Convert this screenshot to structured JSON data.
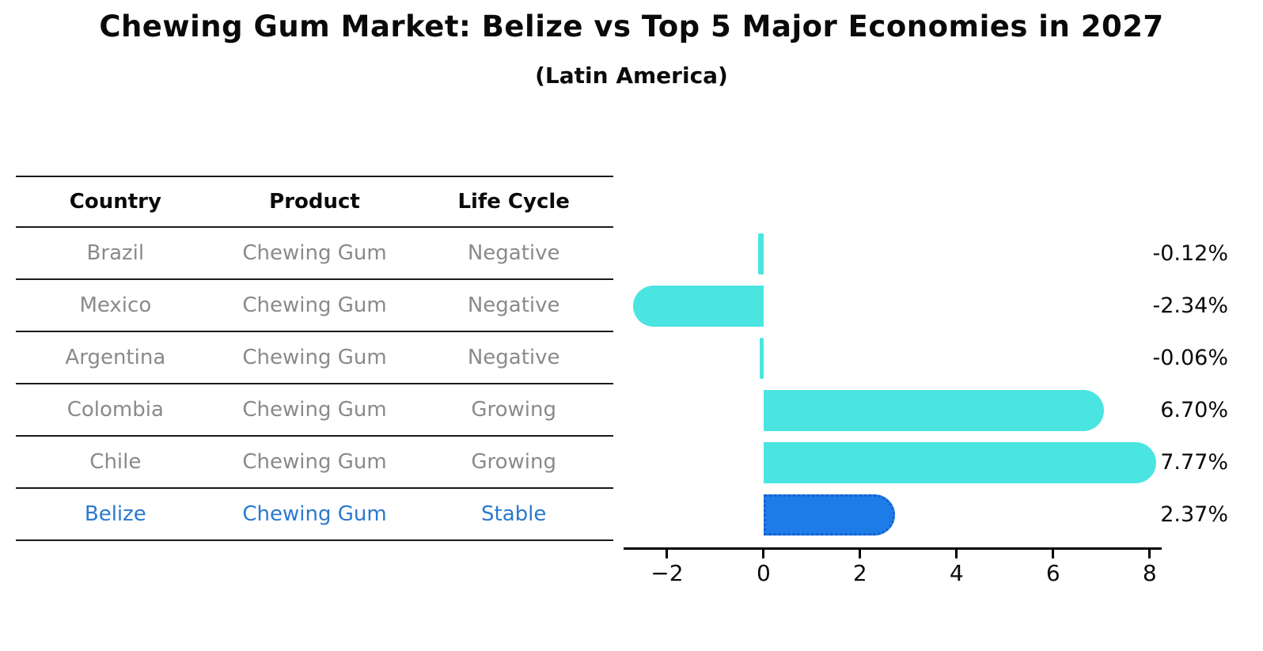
{
  "title": "Chewing Gum Market: Belize vs Top 5 Major Economies in 2027",
  "subtitle": "(Latin America)",
  "table": {
    "headers": [
      "Country",
      "Product",
      "Life Cycle"
    ],
    "rows": [
      {
        "country": "Brazil",
        "product": "Chewing Gum",
        "life_cycle": "Negative",
        "highlight": false
      },
      {
        "country": "Mexico",
        "product": "Chewing Gum",
        "life_cycle": "Negative",
        "highlight": false
      },
      {
        "country": "Argentina",
        "product": "Chewing Gum",
        "life_cycle": "Negative",
        "highlight": false
      },
      {
        "country": "Colombia",
        "product": "Chewing Gum",
        "life_cycle": "Growing",
        "highlight": false
      },
      {
        "country": "Chile",
        "product": "Chewing Gum",
        "life_cycle": "Growing",
        "highlight": false
      },
      {
        "country": "Belize",
        "product": "Chewing Gum",
        "life_cycle": "Stable",
        "highlight": true
      }
    ]
  },
  "chart_data": {
    "type": "bar",
    "orientation": "horizontal",
    "title": "Chewing Gum Market: Belize vs Top 5 Major Economies in 2027",
    "subtitle": "(Latin America)",
    "categories": [
      "Brazil",
      "Mexico",
      "Argentina",
      "Colombia",
      "Chile",
      "Belize"
    ],
    "values": [
      -0.12,
      -2.34,
      -0.06,
      6.7,
      7.77,
      2.37
    ],
    "value_labels": [
      "-0.12%",
      "-2.34%",
      "-0.06%",
      "6.70%",
      "7.77%",
      "2.37%"
    ],
    "units": "percent",
    "x_ticks": [
      -2,
      0,
      2,
      4,
      6,
      8
    ],
    "x_tick_labels": [
      "−2",
      "0",
      "2",
      "4",
      "6",
      "8"
    ],
    "xlim": [
      -2.9,
      8.25
    ],
    "grid": false,
    "legend": null,
    "highlight_index": 5,
    "bar_color": "#4ae5e0",
    "highlight_bar_color": "#1e7ce8",
    "highlight_border_color": "#155fce",
    "highlight_text_color": "#2b79cf",
    "row_text_color": "#8a8a8a",
    "axis_color": "#000000",
    "value_label_color": "#0a0a0a"
  }
}
